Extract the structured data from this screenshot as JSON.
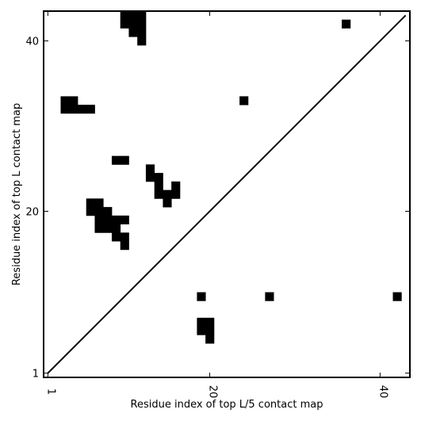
{
  "chart_data": {
    "type": "heatmap",
    "xlabel": "Residue index of top L/5 contact map",
    "ylabel": "Residue index of top L contact map",
    "xlim": [
      0.5,
      43.5
    ],
    "ylim": [
      0.5,
      43.5
    ],
    "xticks": [
      1,
      20,
      40
    ],
    "xtick_labels": [
      "1",
      "20",
      "40"
    ],
    "yticks": [
      1,
      20,
      40
    ],
    "ytick_labels": [
      "1",
      "20",
      "40"
    ],
    "diagonal": [
      [
        1,
        1
      ],
      [
        43,
        43
      ]
    ],
    "contacts_top_L": [
      [
        10,
        43
      ],
      [
        11,
        43
      ],
      [
        12,
        43
      ],
      [
        10,
        42
      ],
      [
        11,
        42
      ],
      [
        12,
        42
      ],
      [
        11,
        41
      ],
      [
        12,
        41
      ],
      [
        12,
        40
      ],
      [
        3,
        33
      ],
      [
        4,
        33
      ],
      [
        3,
        32
      ],
      [
        4,
        32
      ],
      [
        5,
        32
      ],
      [
        6,
        32
      ],
      [
        9,
        26
      ],
      [
        10,
        26
      ],
      [
        13,
        25
      ],
      [
        13,
        24
      ],
      [
        14,
        24
      ],
      [
        14,
        23
      ],
      [
        16,
        23
      ],
      [
        14,
        22
      ],
      [
        15,
        22
      ],
      [
        16,
        22
      ],
      [
        15,
        21
      ],
      [
        6,
        21
      ],
      [
        7,
        21
      ],
      [
        6,
        20
      ],
      [
        7,
        20
      ],
      [
        8,
        20
      ],
      [
        7,
        19
      ],
      [
        8,
        19
      ],
      [
        9,
        19
      ],
      [
        10,
        19
      ],
      [
        7,
        18
      ],
      [
        8,
        18
      ],
      [
        9,
        18
      ],
      [
        9,
        17
      ],
      [
        10,
        17
      ],
      [
        10,
        16
      ]
    ],
    "contacts_top_L5": [
      [
        36,
        42
      ],
      [
        24,
        33
      ],
      [
        19,
        10
      ],
      [
        27,
        10
      ],
      [
        42,
        10
      ],
      [
        19,
        7
      ],
      [
        20,
        7
      ],
      [
        19,
        6
      ],
      [
        20,
        6
      ],
      [
        20,
        5
      ]
    ]
  }
}
